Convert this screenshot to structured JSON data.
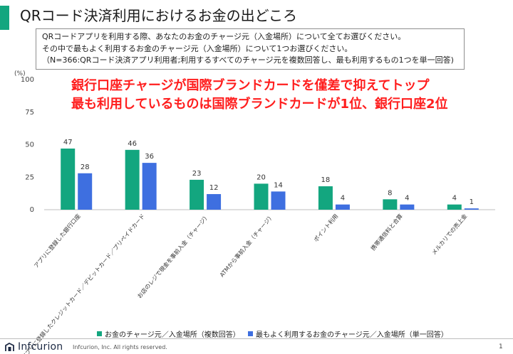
{
  "slide": {
    "title": "QRコード決済利用におけるお金の出どころ",
    "note_lines": [
      "QRコードアプリを利用する際、あなたのお金のチャージ元（入金場所）について全てお選びください。",
      "その中で最もよく利用するお金のチャージ元（入金場所）について1つお選びください。",
      "（N=366:QRコード決済アプリ利用者;利用するすべてのチャージ元を複数回答し、最も利用するもの1つを単一回答)"
    ],
    "headline_lines": [
      "銀行口座チャージが国際ブランドカードを僅差で抑えてトップ",
      "最も利用しているものは国際ブランドカードが1位、銀行口座2位"
    ],
    "accent_color": "#13a67f"
  },
  "chart_data": {
    "type": "bar",
    "unit_label": "(%)",
    "ylim": [
      0,
      100
    ],
    "yticks": [
      0,
      25,
      50,
      75,
      100
    ],
    "grid": false,
    "legend_position": "bottom",
    "categories": [
      "アプリに登録した銀行口座",
      "アプリに登録したクレジットカード／デビットカード／プリペイドカード",
      "お店のレジで現金を事前入金（チャージ）",
      "ATMから事前入金（チャージ）",
      "ポイント利用",
      "携帯通信料と合算",
      "メルカリでの売上金"
    ],
    "series": [
      {
        "name": "お金のチャージ元／入金場所（複数回答）",
        "color": "#13a67f",
        "values": [
          47,
          46,
          23,
          20,
          18,
          8,
          4
        ]
      },
      {
        "name": "最もよく利用するお金のチャージ元／入金場所（単一回答）",
        "color": "#3e6fe0",
        "values": [
          28,
          36,
          12,
          14,
          4,
          4,
          1
        ]
      }
    ]
  },
  "footer": {
    "logo_text": "Infcurion",
    "copyright": "Infcurion, Inc.  All rights reserved.",
    "page_number": "1"
  }
}
